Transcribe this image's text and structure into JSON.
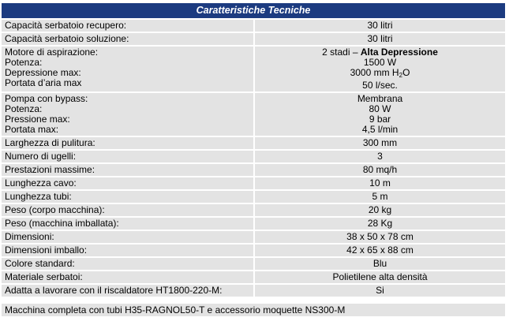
{
  "header": {
    "title": "Caratteristiche Tecniche"
  },
  "rows": [
    {
      "left": [
        "Capacità serbatoio recupero:"
      ],
      "right": [
        "30 litri"
      ]
    },
    {
      "left": [
        "Capacità serbatoio soluzione:"
      ],
      "right": [
        "30 litri"
      ]
    },
    {
      "left": [
        "Motore di aspirazione:",
        "Potenza:",
        "Depressione max:",
        "Portata d’aria max"
      ],
      "right": [
        "2 stadi – ",
        "1500 W",
        "3000 mm H",
        "50 l/sec."
      ],
      "motor_bold": "Alta Depressione",
      "h2o_sub": "2",
      "h2o_suffix": "O"
    },
    {
      "left": [
        "Pompa con bypass:",
        "Potenza:",
        "Pressione max:",
        "Portata max:"
      ],
      "right": [
        "Membrana",
        "80 W",
        "9 bar",
        "4,5 l/min"
      ]
    },
    {
      "left": [
        "Larghezza di pulitura:"
      ],
      "right": [
        "300 mm"
      ]
    },
    {
      "left": [
        "Numero di ugelli:"
      ],
      "right": [
        "3"
      ]
    },
    {
      "left": [
        "Prestazioni massime:"
      ],
      "right": [
        "80 mq/h"
      ]
    },
    {
      "left": [
        "Lunghezza cavo:"
      ],
      "right": [
        "10 m"
      ]
    },
    {
      "left": [
        "Lunghezza tubi:"
      ],
      "right": [
        "5 m"
      ]
    },
    {
      "left": [
        "Peso (corpo macchina):"
      ],
      "right": [
        "20 kg"
      ]
    },
    {
      "left": [
        "Peso (macchina imballata):"
      ],
      "right": [
        "28 Kg"
      ]
    },
    {
      "left": [
        "Dimensioni:"
      ],
      "right": [
        "38 x 50 x 78 cm"
      ]
    },
    {
      "left": [
        "Dimensioni imballo:"
      ],
      "right": [
        "42 x 65 x 88 cm"
      ]
    },
    {
      "left": [
        "Colore standard:"
      ],
      "right": [
        "Blu"
      ]
    },
    {
      "left": [
        "Materiale serbatoi:"
      ],
      "right": [
        "Polietilene alta densità"
      ]
    },
    {
      "left": [
        "Adatta a lavorare con il riscaldatore HT1800-220-M:"
      ],
      "right": [
        "Si"
      ]
    }
  ],
  "footer": {
    "text": "Macchina completa con tubi H35-RAGNOL50-T e accessorio moquette NS300-M"
  },
  "colors": {
    "header_bg": "#1c3b80",
    "cell_bg": "#e3e3e3"
  }
}
